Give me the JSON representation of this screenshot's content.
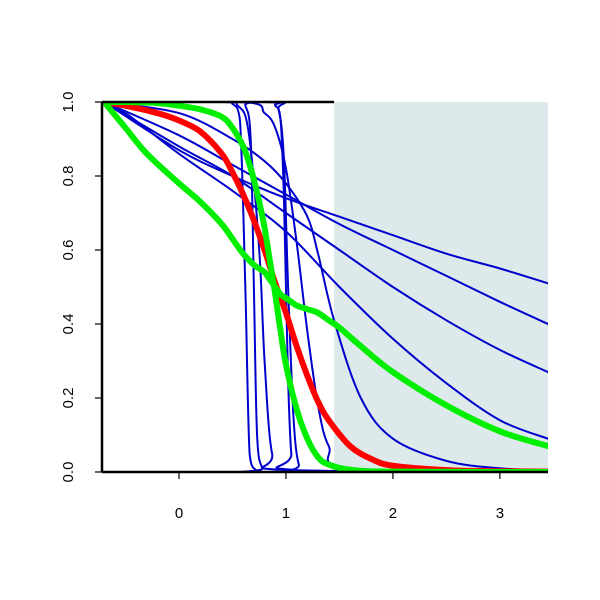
{
  "chart_data": {
    "type": "line",
    "title": "",
    "xlabel": "",
    "ylabel": "",
    "xlim": [
      -0.72,
      3.45
    ],
    "ylim": [
      0,
      1
    ],
    "x_ticks": [
      0,
      1,
      2,
      3
    ],
    "x_tick_labels": [
      "0",
      "1",
      "2",
      "3"
    ],
    "y_ticks": [
      0,
      0.2,
      0.4,
      0.6,
      0.8,
      1
    ],
    "y_tick_labels": [
      "0.0",
      "0.2",
      "0.4",
      "0.6",
      "0.8",
      "1.0"
    ],
    "grid": false,
    "shaded_region": {
      "x_from": 1.45,
      "x_to": 3.45,
      "color": "#dde9ea"
    },
    "series": [
      {
        "color": "#0000cc",
        "x": [
          -0.7,
          0.4,
          0.5,
          0.57,
          0.62,
          0.66,
          0.72,
          0.8,
          3.45
        ],
        "y": [
          1,
          1,
          0.995,
          0.95,
          0.5,
          0.05,
          0.005,
          0,
          0
        ]
      },
      {
        "color": "#0000cc",
        "x": [
          -0.7,
          0.55,
          0.62,
          0.67,
          0.7,
          0.73,
          0.78,
          0.85,
          3.45
        ],
        "y": [
          1,
          1,
          0.99,
          0.9,
          0.5,
          0.1,
          0.01,
          0,
          0
        ]
      },
      {
        "color": "#0000cc",
        "x": [
          -0.7,
          0.4,
          0.55,
          0.65,
          0.75,
          0.8,
          0.87,
          1.0,
          3.45
        ],
        "y": [
          1,
          1,
          0.99,
          0.92,
          0.6,
          0.3,
          0.05,
          0.005,
          0
        ]
      },
      {
        "color": "#0000cc",
        "x": [
          -0.7,
          0.8,
          0.9,
          0.95,
          0.98,
          1.0,
          1.02,
          1.05,
          1.1,
          3.45
        ],
        "y": [
          1,
          1,
          0.99,
          0.95,
          0.75,
          0.5,
          0.25,
          0.05,
          0.005,
          0
        ]
      },
      {
        "color": "#0000cc",
        "x": [
          -0.7,
          0.85,
          0.93,
          0.98,
          1.02,
          1.07,
          1.12,
          1.2,
          3.45
        ],
        "y": [
          1,
          1,
          0.98,
          0.85,
          0.5,
          0.15,
          0.02,
          0,
          0
        ]
      },
      {
        "color": "#0000cc",
        "x": [
          -0.7,
          0.6,
          0.8,
          0.9,
          1.0,
          1.1,
          1.2,
          1.3,
          1.4,
          1.6,
          3.45
        ],
        "y": [
          1,
          1,
          0.97,
          0.93,
          0.82,
          0.62,
          0.38,
          0.18,
          0.07,
          0.01,
          0
        ]
      },
      {
        "color": "#0000cc",
        "x": [
          -0.7,
          0,
          0.5,
          0.8,
          1.0,
          1.2,
          1.3,
          1.45,
          1.7,
          2.0,
          2.5,
          3.0,
          3.45
        ],
        "y": [
          1,
          0.97,
          0.9,
          0.84,
          0.78,
          0.69,
          0.59,
          0.41,
          0.2,
          0.09,
          0.03,
          0.01,
          0.005
        ]
      },
      {
        "color": "#0000cc",
        "x": [
          -0.7,
          -0.5,
          0,
          0.5,
          1.0,
          1.5,
          2.0,
          2.5,
          3.0,
          3.45
        ],
        "y": [
          1,
          0.97,
          0.86,
          0.76,
          0.65,
          0.5,
          0.36,
          0.24,
          0.14,
          0.09
        ]
      },
      {
        "color": "#0000cc",
        "x": [
          -0.7,
          0,
          0.5,
          1.0,
          1.5,
          2.0,
          2.5,
          3.0,
          3.45
        ],
        "y": [
          1,
          0.88,
          0.8,
          0.7,
          0.6,
          0.5,
          0.41,
          0.33,
          0.27
        ]
      },
      {
        "color": "#0000cc",
        "x": [
          -0.7,
          0,
          0.5,
          1.0,
          1.5,
          2.0,
          2.5,
          3.0,
          3.45
        ],
        "y": [
          1,
          0.91,
          0.83,
          0.75,
          0.67,
          0.6,
          0.53,
          0.46,
          0.4
        ]
      },
      {
        "color": "#0000cc",
        "x": [
          -0.7,
          0,
          0.5,
          1.0,
          1.5,
          2.0,
          2.5,
          3.0,
          3.45
        ],
        "y": [
          1,
          0.87,
          0.8,
          0.74,
          0.69,
          0.64,
          0.59,
          0.55,
          0.51
        ]
      },
      {
        "color": "#ff0000",
        "x": [
          -0.7,
          -0.5,
          -0.2,
          0,
          0.2,
          0.4,
          0.5,
          0.6,
          0.7,
          0.8,
          0.9,
          1.0,
          1.1,
          1.2,
          1.3,
          1.4,
          1.6,
          1.8,
          2.0,
          2.5,
          3.0,
          3.45
        ],
        "y": [
          1,
          0.99,
          0.97,
          0.95,
          0.92,
          0.86,
          0.81,
          0.75,
          0.68,
          0.6,
          0.51,
          0.43,
          0.34,
          0.26,
          0.19,
          0.14,
          0.07,
          0.035,
          0.017,
          0.005,
          0.002,
          0.001
        ]
      },
      {
        "color": "#00ee00",
        "x": [
          -0.7,
          -0.5,
          -0.2,
          0,
          0.2,
          0.4,
          0.5,
          0.6,
          0.65,
          0.7,
          0.75,
          0.8,
          0.85,
          0.9,
          0.95,
          1.0,
          1.1,
          1.2,
          1.3,
          1.4,
          1.6,
          2.0,
          3.45
        ],
        "y": [
          1,
          1,
          0.997,
          0.99,
          0.98,
          0.96,
          0.93,
          0.88,
          0.84,
          0.79,
          0.73,
          0.66,
          0.57,
          0.48,
          0.38,
          0.29,
          0.17,
          0.09,
          0.04,
          0.02,
          0.006,
          0.001,
          0
        ]
      },
      {
        "color": "#00ee00",
        "x": [
          -0.7,
          -0.5,
          -0.3,
          0,
          0.2,
          0.4,
          0.5,
          0.6,
          0.7,
          0.75,
          0.8,
          0.85,
          0.9,
          0.95,
          1.0,
          1.05,
          1.1,
          1.2,
          1.3,
          1.4,
          1.5,
          1.7,
          2.0,
          2.5,
          3.0,
          3.45
        ],
        "y": [
          1,
          0.93,
          0.86,
          0.78,
          0.73,
          0.67,
          0.63,
          0.59,
          0.56,
          0.55,
          0.54,
          0.52,
          0.5,
          0.48,
          0.47,
          0.46,
          0.45,
          0.44,
          0.43,
          0.41,
          0.39,
          0.34,
          0.27,
          0.18,
          0.11,
          0.07
        ]
      }
    ]
  }
}
